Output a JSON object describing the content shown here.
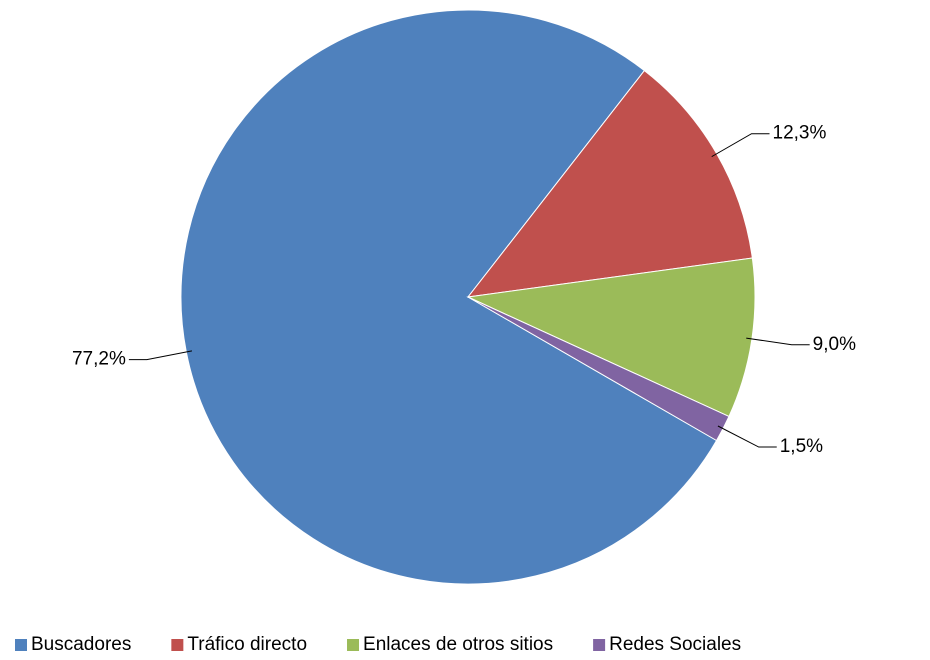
{
  "chart_data": {
    "type": "pie",
    "categories": [
      "Buscadores",
      "Tráfico directo",
      "Enlaces de otros sitios",
      "Redes Sociales"
    ],
    "values": [
      77.2,
      12.3,
      9.0,
      1.5
    ],
    "value_labels": [
      "77,2%",
      "12,3%",
      "9,0%",
      "1,5%"
    ],
    "colors": [
      "#4f81bd",
      "#c0504d",
      "#9bbb59",
      "#8064a2"
    ],
    "legend": "bottom"
  }
}
